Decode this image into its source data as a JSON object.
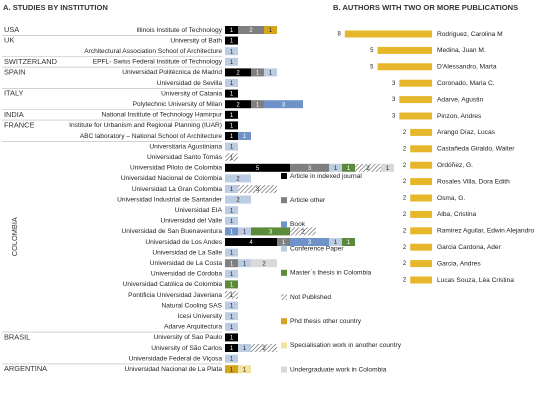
{
  "chart_data": [
    {
      "type": "stacked-bar",
      "orientation": "horizontal",
      "title": "A. STUDIES BY INSTITUTION",
      "legend": "right",
      "groups": [
        {
          "name": "USA",
          "categories": [
            "Illinois Institute of Technology"
          ]
        },
        {
          "name": "UK",
          "categories": [
            "University of Bath",
            "Architectural Association School of Architecture"
          ]
        },
        {
          "name": "SWITZERLAND",
          "categories": [
            "EPFL- Swiss Federal Institute of Technology"
          ]
        },
        {
          "name": "SPAIN",
          "categories": [
            "Universidad Politécnica de Madrid",
            "Universidad de Sevilla"
          ]
        },
        {
          "name": "ITALY",
          "categories": [
            "University of Catania",
            "Polytechnic University of Milan"
          ]
        },
        {
          "name": "INDIA",
          "categories": [
            "National Institute of Technology Hamirpur"
          ]
        },
        {
          "name": "FRANCE",
          "categories": [
            "Institute for Urbanism and Regional Planning (IUAR)",
            "ABC laboratory – National School of Architecture"
          ]
        },
        {
          "name": "COLOMBIA",
          "categories": [
            "Universitaria Agustiniana",
            "Universidad Santo Tomás",
            "Universidad Piloto de Colombia",
            "Universidad Nacional de Colombia",
            "Universidad La Gran Colombia",
            "Universidad Industrial de Santander",
            "Universidad EIA",
            "Universidad del Valle",
            "Universidad de San Buenaventura",
            "Universidad de Los Andes",
            "Universidad de La Salle",
            "Universidad de La Costa",
            "Universidad de Córdoba",
            "Universidad Católica de Colombia",
            "Pontificia Universidad Javeriana",
            "Natural Cooling SAS",
            "Icesi University",
            "Adarve Arquitectura"
          ]
        },
        {
          "name": "BRASIL",
          "categories": [
            "University of Sao Paulo",
            "University of São Carlos",
            "Universidade Federal de Viçosa"
          ]
        },
        {
          "name": "ARGENTINA",
          "categories": [
            "Universidad Nacional de La Plata"
          ]
        }
      ],
      "series": [
        {
          "name": "Article in indexed journal",
          "color": "#000000",
          "values": [
            1,
            1,
            null,
            null,
            2,
            null,
            1,
            2,
            1,
            1,
            1,
            null,
            null,
            5,
            null,
            null,
            null,
            null,
            null,
            null,
            4,
            null,
            null,
            null,
            null,
            null,
            null,
            null,
            null,
            1,
            1,
            null,
            null
          ]
        },
        {
          "name": "Article other",
          "color": "#7f7f7f",
          "values": [
            2,
            null,
            null,
            null,
            1,
            null,
            null,
            1,
            null,
            null,
            null,
            null,
            null,
            3,
            null,
            null,
            null,
            null,
            null,
            null,
            1,
            null,
            1,
            null,
            null,
            null,
            null,
            null,
            null,
            null,
            null,
            null,
            null
          ]
        },
        {
          "name": "Book",
          "color": "#6f93c9",
          "values": [
            null,
            null,
            null,
            null,
            null,
            null,
            null,
            3,
            null,
            null,
            1,
            null,
            null,
            null,
            null,
            null,
            null,
            null,
            null,
            1,
            3,
            null,
            null,
            null,
            null,
            null,
            null,
            null,
            null,
            null,
            null,
            null,
            null
          ]
        },
        {
          "name": "Conference Paper",
          "color": "#bccde3",
          "values": [
            null,
            null,
            1,
            1,
            1,
            1,
            null,
            null,
            null,
            null,
            null,
            1,
            null,
            1,
            2,
            1,
            2,
            1,
            1,
            1,
            1,
            1,
            1,
            1,
            null,
            null,
            1,
            1,
            1,
            null,
            1,
            1,
            null
          ]
        },
        {
          "name": "Master´s thesis in Colombia",
          "color": "#5b8a3a",
          "values": [
            null,
            null,
            null,
            null,
            null,
            null,
            null,
            null,
            null,
            null,
            null,
            null,
            null,
            1,
            null,
            null,
            null,
            null,
            null,
            3,
            1,
            null,
            null,
            null,
            1,
            null,
            null,
            null,
            null,
            null,
            null,
            null,
            null
          ]
        },
        {
          "name": "Not Published",
          "color": "#555555",
          "pattern": "hatch",
          "values": [
            null,
            null,
            null,
            null,
            null,
            null,
            null,
            null,
            null,
            null,
            null,
            null,
            1,
            2,
            null,
            3,
            null,
            null,
            null,
            2,
            null,
            null,
            null,
            null,
            null,
            1,
            null,
            null,
            null,
            null,
            2,
            null,
            null
          ]
        },
        {
          "name": "Phd thesis other country",
          "color": "#d4a41c",
          "values": [
            1,
            null,
            null,
            null,
            null,
            null,
            null,
            null,
            null,
            null,
            null,
            null,
            null,
            null,
            null,
            null,
            null,
            null,
            null,
            null,
            null,
            null,
            null,
            null,
            null,
            null,
            null,
            null,
            null,
            null,
            null,
            null,
            1
          ]
        },
        {
          "name": "Specialisation work in another country",
          "color": "#f3e3a1",
          "values": [
            null,
            null,
            null,
            null,
            null,
            null,
            null,
            null,
            null,
            null,
            null,
            null,
            null,
            null,
            null,
            null,
            null,
            null,
            null,
            null,
            null,
            null,
            null,
            null,
            null,
            null,
            null,
            null,
            null,
            null,
            null,
            null,
            1
          ]
        },
        {
          "name": "Undergraduate work in Colombia",
          "color": "#d9d9d9",
          "values": [
            null,
            null,
            null,
            null,
            null,
            null,
            null,
            null,
            null,
            null,
            null,
            null,
            null,
            1,
            null,
            null,
            null,
            null,
            null,
            null,
            null,
            null,
            2,
            null,
            null,
            null,
            null,
            null,
            null,
            null,
            null,
            null,
            null
          ]
        }
      ]
    },
    {
      "type": "bar",
      "orientation": "horizontal",
      "title": "B. AUTHORS WITH TWO OR MORE PUBLICATIONS",
      "color": "#e6b72a",
      "categories": [
        "Rodriguez, Carolina M",
        "Medina, Juan M.",
        "D'Alessandro, Marta",
        "Coronado, Maria C.",
        "Adarve, Agustin",
        "Pinzon, Andres",
        "Arango Díaz, Lucas",
        "Castañeda Giraldo, Walter",
        "Ordóñez, G.",
        "Rosales Villa, Dora Edith",
        "Osma, G.",
        "Alba, Cristina",
        "Ramirez Aguilar, Edwin Alejandro",
        "Garcia Cardona, Ader",
        "Garcia, Andres",
        "Lucas Souza, Léa Cristina"
      ],
      "values": [
        8,
        5,
        5,
        3,
        3,
        3,
        2,
        2,
        2,
        2,
        2,
        2,
        2,
        2,
        2,
        2
      ]
    }
  ]
}
